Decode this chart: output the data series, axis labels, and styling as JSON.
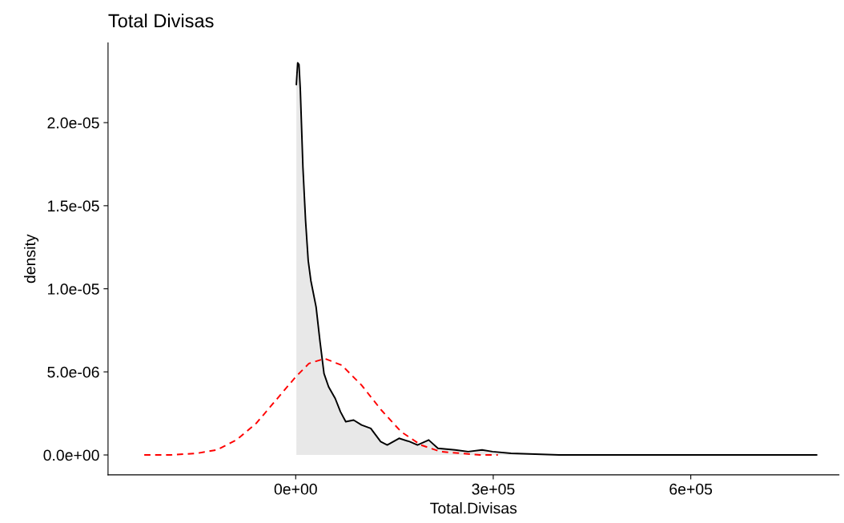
{
  "chart_data": {
    "type": "line",
    "title": "Total Divisas",
    "xlabel": "Total.Divisas",
    "ylabel": "density",
    "xlim": [
      -285000,
      825000
    ],
    "ylim": [
      -1.2e-06,
      2.48e-05
    ],
    "xticks": [
      {
        "value": 0,
        "label": "0e+00"
      },
      {
        "value": 300000,
        "label": "3e+05"
      },
      {
        "value": 600000,
        "label": "6e+05"
      }
    ],
    "yticks": [
      {
        "value": 0,
        "label": "0.0e+00"
      },
      {
        "value": 5e-06,
        "label": "5.0e-06"
      },
      {
        "value": 1e-05,
        "label": "1.0e-05"
      },
      {
        "value": 1.5e-05,
        "label": "1.5e-05"
      },
      {
        "value": 2e-05,
        "label": "2.0e-05"
      }
    ],
    "grid": false,
    "legend": false,
    "series": [
      {
        "type": "area",
        "color": "#000000",
        "line_style": "solid",
        "x": [
          1000,
          3000,
          5000,
          7000,
          11000,
          15000,
          19000,
          23000,
          31000,
          37000,
          43000,
          50000,
          60000,
          68000,
          76000,
          88000,
          100000,
          114000,
          129000,
          139000,
          157000,
          173000,
          185000,
          202000,
          216000,
          242000,
          262000,
          283000,
          299000,
          327000,
          400000,
          500000,
          600000,
          700000,
          791000
        ],
        "values": [
          2.23e-05,
          2.36e-05,
          2.35e-05,
          2.2e-05,
          1.73e-05,
          1.41e-05,
          1.17e-05,
          1.05e-05,
          8.9e-06,
          6.8e-06,
          4.9e-06,
          4.1e-06,
          3.4e-06,
          2.6e-06,
          2e-06,
          2.1e-06,
          1.8e-06,
          1.6e-06,
          8e-07,
          6e-07,
          1e-06,
          8e-07,
          6e-07,
          9e-07,
          4e-07,
          3e-07,
          2e-07,
          3e-07,
          2e-07,
          1e-07,
          0,
          0,
          0,
          0,
          0
        ]
      },
      {
        "color": "#ff0000",
        "line_style": "dashed",
        "x": [
          -230000,
          -190000,
          -150000,
          -120000,
          -90000,
          -60000,
          -30000,
          0,
          20000,
          44000,
          70000,
          100000,
          130000,
          160000,
          190000,
          220000,
          250000,
          280000,
          307000
        ],
        "values": [
          0,
          0,
          1e-07,
          3e-07,
          9e-07,
          1.9e-06,
          3.3e-06,
          4.7e-06,
          5.5e-06,
          5.8e-06,
          5.4e-06,
          4.2e-06,
          2.7e-06,
          1.4e-06,
          6e-07,
          2e-07,
          1e-07,
          0,
          0
        ]
      }
    ]
  }
}
